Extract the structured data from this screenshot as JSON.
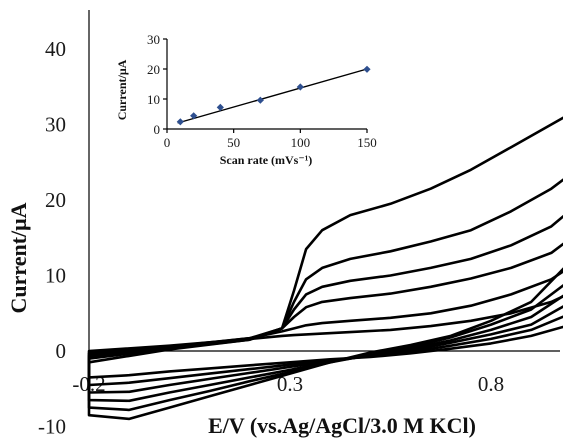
{
  "chart_data": [
    {
      "type": "line",
      "title": "",
      "xlabel": "E/V (vs.Ag/AgCl/3.0 M KCl)",
      "ylabel": "Current/μA",
      "xlim": [
        -0.2,
        1.1
      ],
      "ylim": [
        -10,
        43
      ],
      "xticks": [
        -0.2,
        0.3,
        0.8
      ],
      "xtick_labels": [
        "-0.2",
        "0.3",
        "0.8"
      ],
      "yticks": [
        -10,
        0,
        10,
        20,
        30,
        40
      ],
      "ytick_labels": [
        "-10",
        "0",
        "10",
        "20",
        "30",
        "40"
      ],
      "grid": false,
      "legend": "none",
      "series": [
        {
          "x": [
            -0.2,
            0.0,
            0.2,
            0.28,
            0.31,
            0.34,
            0.38,
            0.45,
            0.55,
            0.65,
            0.75,
            0.85,
            0.95,
            1.05,
            1.1,
            1.1,
            1.08,
            1.0,
            0.9,
            0.8,
            0.7,
            0.6,
            0.5,
            0.4,
            0.3,
            0.2,
            0.1,
            0.0,
            -0.1,
            -0.2
          ],
          "y": [
            -1.5,
            0.2,
            1.5,
            3.0,
            8.0,
            13.5,
            16.0,
            18.0,
            19.5,
            21.5,
            24.0,
            27.0,
            30.0,
            33.0,
            35.0,
            41.0,
            28.0,
            12.0,
            6.5,
            4.0,
            2.0,
            0.8,
            -0.2,
            -1.5,
            -3.0,
            -4.5,
            -6.0,
            -7.5,
            -9.0,
            -8.5
          ]
        },
        {
          "x": [
            -0.2,
            0.0,
            0.2,
            0.28,
            0.31,
            0.34,
            0.38,
            0.45,
            0.55,
            0.65,
            0.75,
            0.85,
            0.95,
            1.05,
            1.1,
            1.08,
            1.0,
            0.9,
            0.8,
            0.7,
            0.6,
            0.5,
            0.4,
            0.3,
            0.2,
            0.1,
            0.0,
            -0.1,
            -0.2
          ],
          "y": [
            -1.0,
            0.3,
            1.5,
            3.0,
            6.5,
            9.5,
            11.0,
            12.2,
            13.2,
            14.5,
            16.0,
            18.5,
            21.5,
            25.5,
            36.0,
            22.0,
            9.5,
            5.5,
            3.5,
            1.8,
            0.5,
            -0.5,
            -1.5,
            -2.8,
            -4.0,
            -5.3,
            -6.5,
            -7.8,
            -7.5
          ]
        },
        {
          "x": [
            -0.2,
            0.0,
            0.2,
            0.28,
            0.31,
            0.34,
            0.38,
            0.45,
            0.55,
            0.65,
            0.75,
            0.85,
            0.95,
            1.05,
            1.1,
            1.08,
            1.0,
            0.9,
            0.8,
            0.7,
            0.6,
            0.5,
            0.4,
            0.3,
            0.2,
            0.1,
            0.0,
            -0.1,
            -0.2
          ],
          "y": [
            -0.8,
            0.4,
            1.6,
            3.0,
            5.5,
            7.5,
            8.5,
            9.3,
            10.0,
            11.0,
            12.2,
            14.0,
            16.5,
            21.0,
            29.0,
            18.0,
            8.0,
            4.5,
            2.8,
            1.4,
            0.3,
            -0.6,
            -1.4,
            -2.5,
            -3.5,
            -4.5,
            -5.5,
            -6.6,
            -6.5
          ]
        },
        {
          "x": [
            -0.2,
            0.0,
            0.2,
            0.28,
            0.31,
            0.34,
            0.38,
            0.45,
            0.55,
            0.65,
            0.75,
            0.85,
            0.95,
            1.05,
            1.1,
            1.08,
            1.0,
            0.9,
            0.8,
            0.7,
            0.6,
            0.5,
            0.4,
            0.3,
            0.2,
            0.1,
            0.0,
            -0.1,
            -0.2
          ],
          "y": [
            -0.6,
            0.5,
            1.7,
            3.0,
            4.5,
            5.8,
            6.5,
            7.0,
            7.6,
            8.5,
            9.6,
            11.0,
            13.0,
            17.0,
            23.0,
            14.0,
            6.5,
            3.5,
            2.2,
            1.1,
            0.1,
            -0.6,
            -1.3,
            -2.1,
            -2.9,
            -3.7,
            -4.5,
            -5.4,
            -5.5
          ]
        },
        {
          "x": [
            -0.2,
            0.0,
            0.2,
            0.28,
            0.31,
            0.34,
            0.38,
            0.45,
            0.55,
            0.65,
            0.75,
            0.85,
            0.95,
            1.05,
            1.1,
            1.08,
            1.0,
            0.9,
            0.8,
            0.7,
            0.6,
            0.5,
            0.4,
            0.3,
            0.2,
            0.1,
            0.0,
            -0.1,
            -0.2
          ],
          "y": [
            -0.3,
            0.6,
            1.7,
            2.6,
            3.0,
            3.4,
            3.7,
            4.0,
            4.4,
            5.0,
            6.0,
            7.5,
            9.5,
            13.0,
            17.0,
            11.0,
            5.0,
            2.8,
            1.6,
            0.7,
            -0.1,
            -0.7,
            -1.2,
            -1.8,
            -2.4,
            -3.0,
            -3.6,
            -4.2,
            -4.5
          ]
        },
        {
          "x": [
            -0.2,
            0.0,
            0.2,
            0.28,
            0.31,
            0.34,
            0.38,
            0.45,
            0.55,
            0.65,
            0.75,
            0.85,
            0.95,
            1.05,
            1.1,
            1.08,
            1.0,
            0.9,
            0.8,
            0.7,
            0.6,
            0.5,
            0.4,
            0.3,
            0.2,
            0.1,
            0.0,
            -0.1,
            -0.2
          ],
          "y": [
            0.0,
            0.7,
            1.6,
            2.0,
            2.1,
            2.2,
            2.3,
            2.5,
            2.8,
            3.3,
            4.0,
            5.0,
            6.5,
            9.0,
            11.0,
            7.5,
            3.5,
            2.0,
            1.0,
            0.3,
            -0.3,
            -0.8,
            -1.1,
            -1.5,
            -1.9,
            -2.3,
            -2.7,
            -3.2,
            -3.5
          ]
        }
      ]
    },
    {
      "type": "line",
      "title": "",
      "xlabel": "Scan rate (mVs⁻¹)",
      "ylabel": "Current/μA",
      "xlim": [
        0,
        150
      ],
      "ylim": [
        0,
        30
      ],
      "xticks": [
        0,
        50,
        100,
        150
      ],
      "yticks": [
        0,
        10,
        20,
        30
      ],
      "grid": false,
      "legend": "none",
      "series": [
        {
          "x": [
            10,
            20,
            40,
            70,
            100,
            150
          ],
          "y": [
            2.4,
            4.4,
            7.2,
            9.6,
            14.0,
            19.9
          ],
          "marker": "diamond",
          "marker_color": "#2e4f8f"
        }
      ],
      "fit_line": {
        "x": [
          8,
          150
        ],
        "y": [
          2.0,
          20.0
        ]
      }
    }
  ]
}
